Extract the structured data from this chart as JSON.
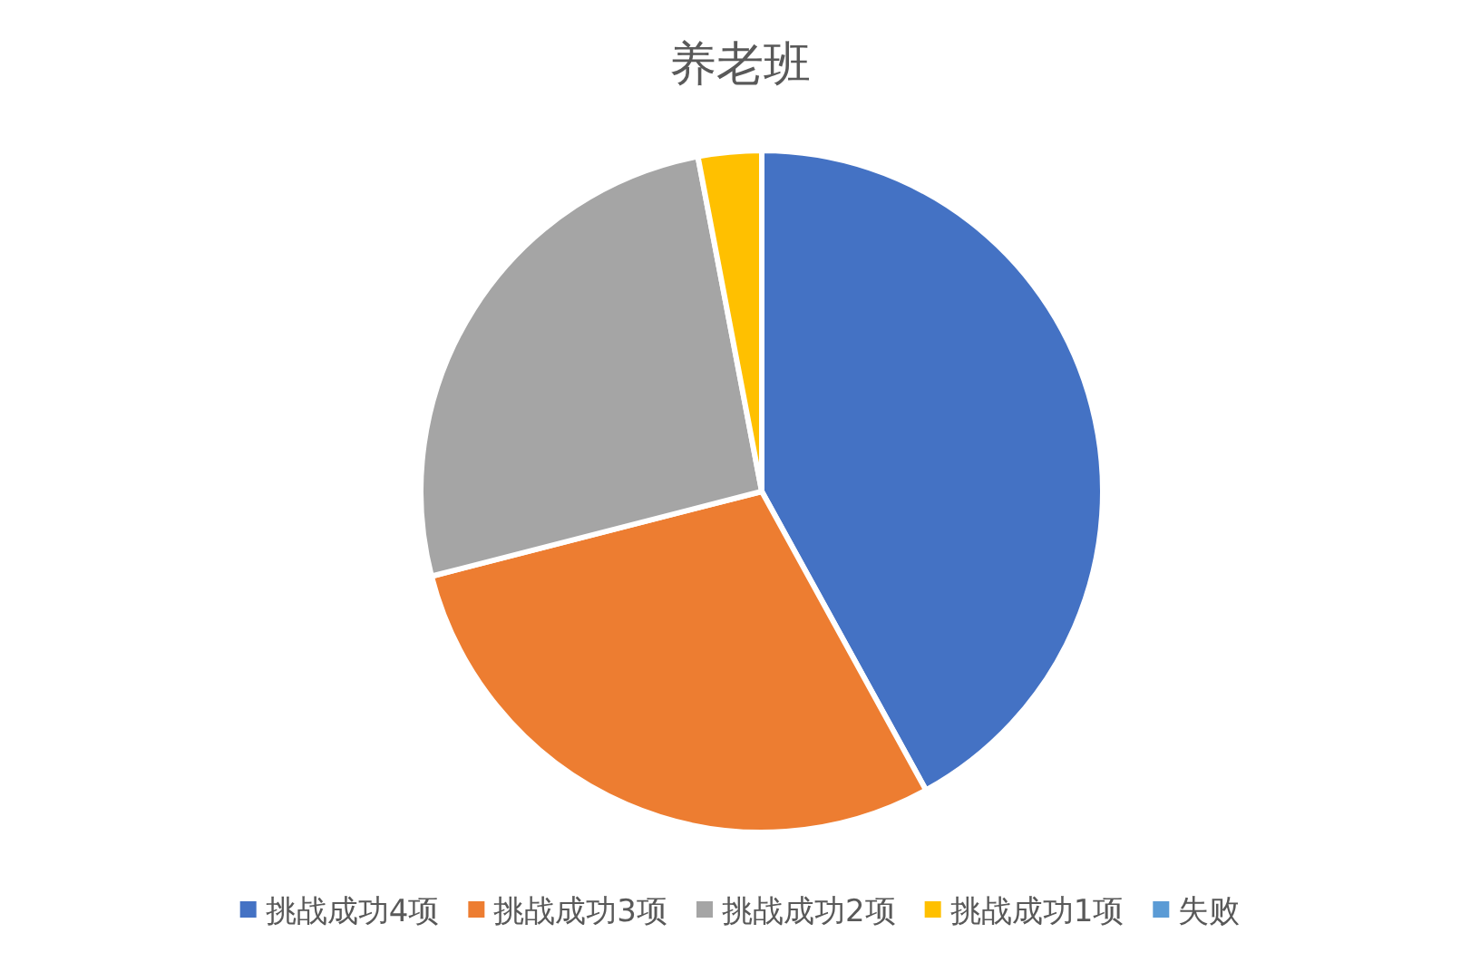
{
  "chart_data": {
    "type": "pie",
    "title": "养老班",
    "categories": [
      "挑战成功4项",
      "挑战成功3项",
      "挑战成功2项",
      "挑战成功1项",
      "失败"
    ],
    "values": [
      42,
      29,
      26,
      3,
      0
    ],
    "colors": [
      "#4472c4",
      "#ed7d31",
      "#a5a5a5",
      "#ffc000",
      "#5b9bd5"
    ],
    "legend": "bottom"
  }
}
